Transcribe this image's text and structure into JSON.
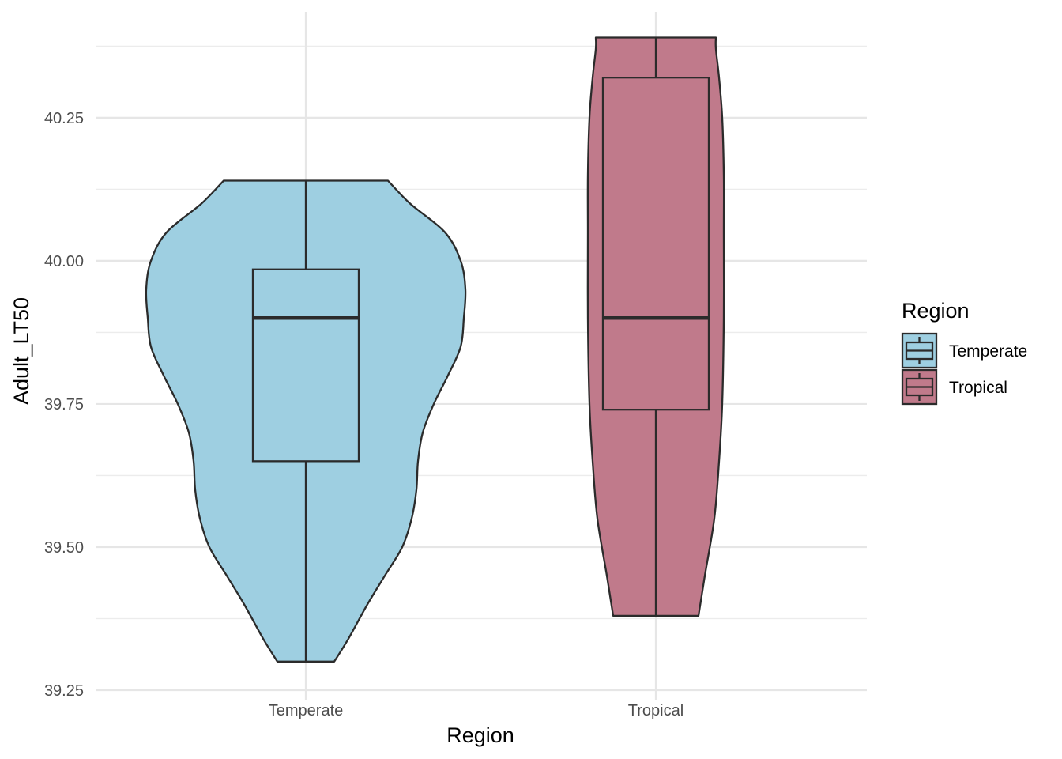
{
  "chart_data": {
    "type": "violin",
    "xlabel": "Region",
    "ylabel": "Adult_LT50",
    "categories": [
      "Temperate",
      "Tropical"
    ],
    "ylim": [
      39.25,
      40.41
    ],
    "yticks": [
      39.25,
      39.5,
      39.75,
      40.0,
      40.25
    ],
    "ytick_labels": [
      "39.25",
      "39.50",
      "39.75",
      "40.00",
      "40.25"
    ],
    "grid": true,
    "legend": {
      "title": "Region",
      "placement": "right",
      "entries": [
        "Temperate",
        "Tropical"
      ]
    },
    "series": [
      {
        "category": "Temperate",
        "color": "#9ecfe1",
        "min": 39.3,
        "q1": 39.65,
        "median": 39.9,
        "q3": 39.985,
        "max": 40.14,
        "density_profile": [
          [
            39.3,
            0.18
          ],
          [
            39.34,
            0.27
          ],
          [
            39.4,
            0.39
          ],
          [
            39.45,
            0.5
          ],
          [
            39.5,
            0.61
          ],
          [
            39.55,
            0.67
          ],
          [
            39.6,
            0.7
          ],
          [
            39.65,
            0.71
          ],
          [
            39.7,
            0.74
          ],
          [
            39.75,
            0.81
          ],
          [
            39.8,
            0.9
          ],
          [
            39.85,
            0.98
          ],
          [
            39.9,
            1.0
          ],
          [
            39.95,
            1.01
          ],
          [
            40.0,
            0.98
          ],
          [
            40.05,
            0.88
          ],
          [
            40.1,
            0.66
          ],
          [
            40.14,
            0.52
          ]
        ]
      },
      {
        "category": "Tropical",
        "color": "#c07a8b",
        "min": 39.38,
        "q1": 39.74,
        "median": 39.9,
        "q3": 40.32,
        "max": 40.39,
        "density_profile": [
          [
            39.38,
            0.27
          ],
          [
            39.45,
            0.31
          ],
          [
            39.55,
            0.37
          ],
          [
            39.65,
            0.4
          ],
          [
            39.75,
            0.42
          ],
          [
            39.9,
            0.43
          ],
          [
            40.05,
            0.43
          ],
          [
            40.15,
            0.43
          ],
          [
            40.25,
            0.42
          ],
          [
            40.32,
            0.4
          ],
          [
            40.37,
            0.38
          ],
          [
            40.39,
            0.38
          ]
        ]
      }
    ]
  }
}
